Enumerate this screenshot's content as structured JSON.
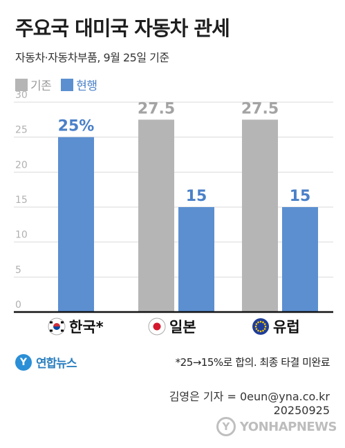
{
  "header": {
    "title": "주요국 대미국 자동차 관세",
    "subtitle": "자동차·자동차부품, 9월 25일 기준"
  },
  "colors": {
    "baseline": "#b5b5b5",
    "current": "#5b8fd0",
    "grid": "#d9d9d9",
    "axis_text": "#b0b0b0",
    "value_gray": "#a3a3a3",
    "value_blue": "#4a80c8"
  },
  "chart_data": {
    "type": "bar",
    "categories": [
      "한국*",
      "일본",
      "유럽"
    ],
    "category_icons": [
      "korea-flag-icon",
      "japan-flag-icon",
      "eu-flag-icon"
    ],
    "series": [
      {
        "name": "기존",
        "values": [
          null,
          27.5,
          27.5
        ]
      },
      {
        "name": "현행",
        "values": [
          25,
          15,
          15
        ]
      }
    ],
    "data_labels": {
      "기존": [
        null,
        "27.5",
        "27.5"
      ],
      "현행": [
        "25%",
        "15",
        "15"
      ]
    },
    "yticks": [
      "0",
      "5",
      "10",
      "15",
      "20",
      "25",
      "30"
    ],
    "ylim": [
      0,
      30
    ],
    "grid": true,
    "legend": "top-left",
    "title": "주요국 대미국 자동차 관세",
    "xlabel": "",
    "ylabel": ""
  },
  "footer": {
    "logo_text": "연합뉴스",
    "logo_mark": "Y",
    "note": "*25→15%로 합의. 최종 타결 미완료",
    "reporter": "김영은 기자 = 0eun@yna.co.kr",
    "date": "20250925",
    "watermark_text": "YONHAPNEWS",
    "watermark_mark": "Y"
  }
}
